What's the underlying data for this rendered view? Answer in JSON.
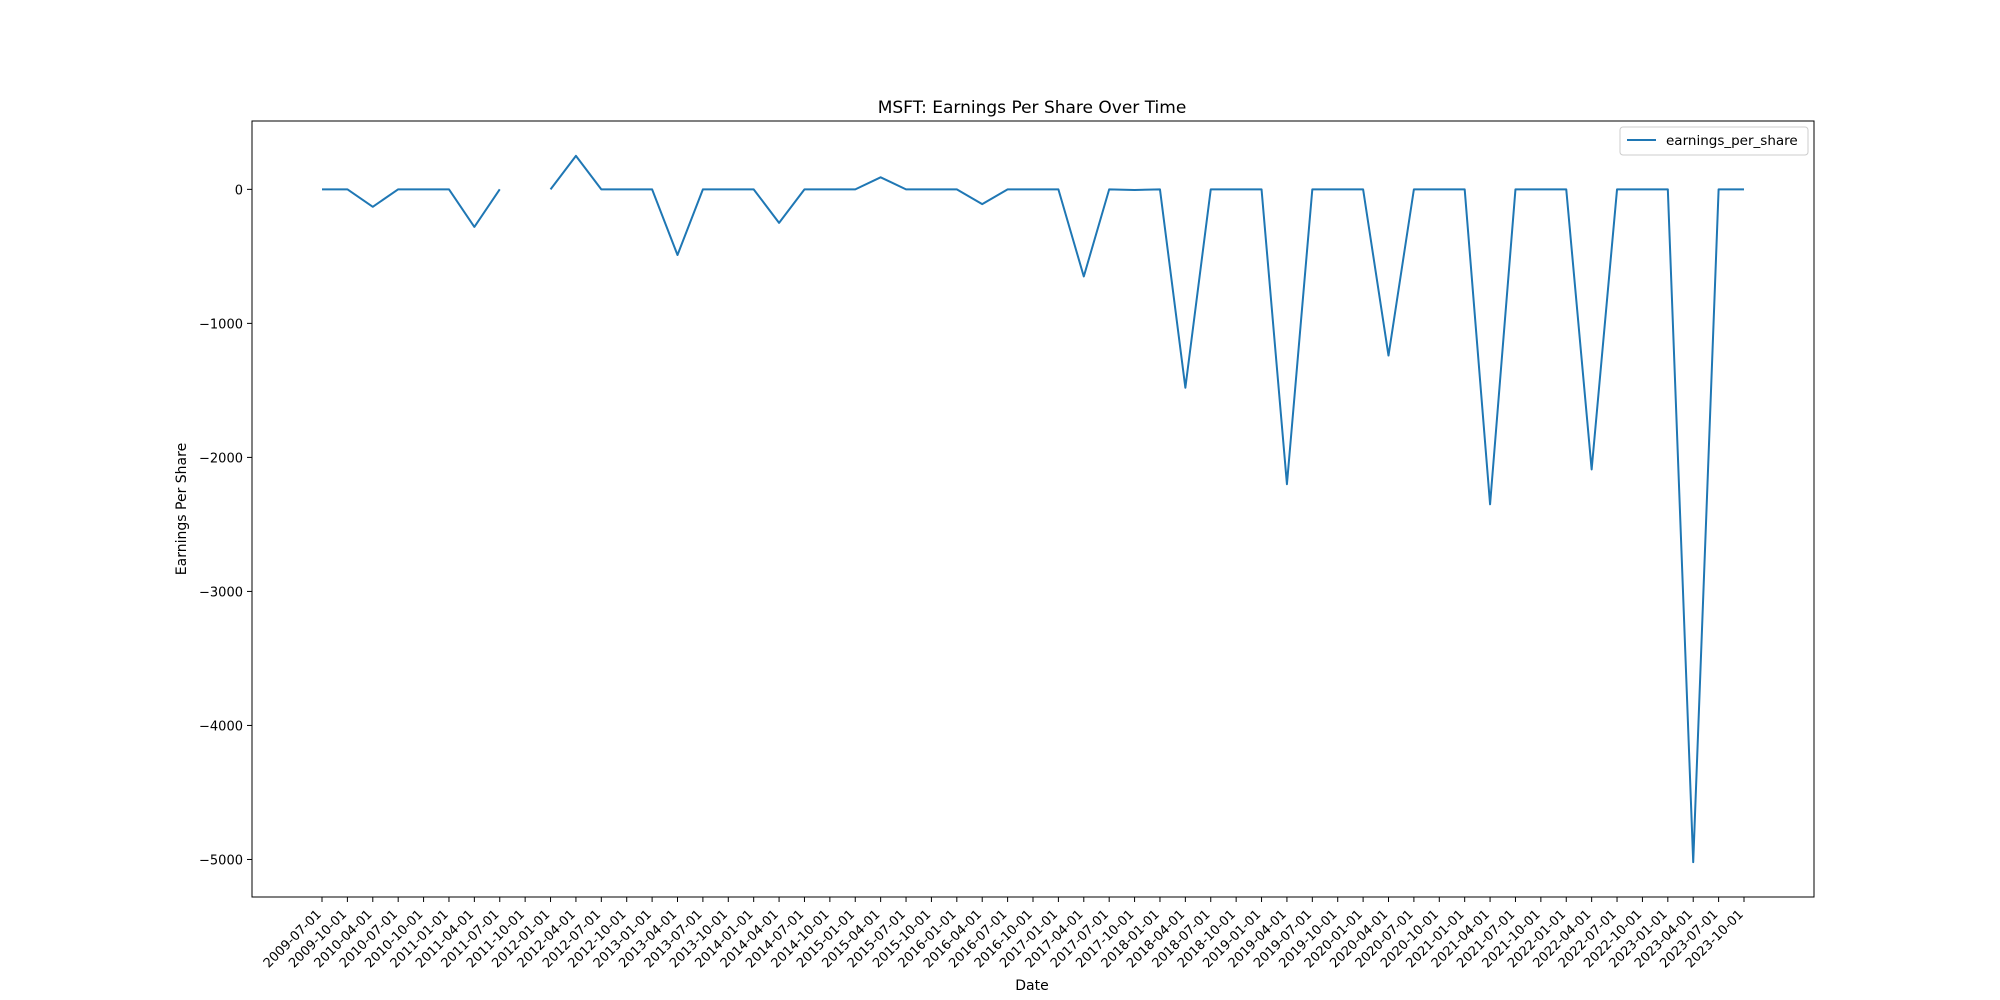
{
  "chart_data": {
    "type": "line",
    "title": "MSFT: Earnings Per Share Over Time",
    "xlabel": "Date",
    "ylabel": "Earnings Per Share",
    "ylim": [
      -5280,
      510
    ],
    "yticks": [
      0,
      -1000,
      -2000,
      -3000,
      -4000,
      -5000
    ],
    "ytick_labels": [
      "0",
      "−1000",
      "−2000",
      "−3000",
      "−4000",
      "−5000"
    ],
    "grid": false,
    "legend_position": "top-right",
    "color": "#1f77b4",
    "categories": [
      "2009-07-01",
      "2009-10-01",
      "2010-04-01",
      "2010-07-01",
      "2010-10-01",
      "2011-01-01",
      "2011-04-01",
      "2011-07-01",
      "2011-10-01",
      "2012-01-01",
      "2012-04-01",
      "2012-07-01",
      "2012-10-01",
      "2013-01-01",
      "2013-04-01",
      "2013-07-01",
      "2013-10-01",
      "2014-01-01",
      "2014-04-01",
      "2014-07-01",
      "2014-10-01",
      "2015-01-01",
      "2015-04-01",
      "2015-07-01",
      "2015-10-01",
      "2016-01-01",
      "2016-04-01",
      "2016-07-01",
      "2016-10-01",
      "2017-01-01",
      "2017-04-01",
      "2017-07-01",
      "2017-10-01",
      "2018-01-01",
      "2018-04-01",
      "2018-07-01",
      "2018-10-01",
      "2019-01-01",
      "2019-04-01",
      "2019-07-01",
      "2019-10-01",
      "2020-01-01",
      "2020-04-01",
      "2020-07-01",
      "2020-10-01",
      "2021-01-01",
      "2021-04-01",
      "2021-07-01",
      "2021-10-01",
      "2022-01-01",
      "2022-04-01",
      "2022-07-01",
      "2022-10-01",
      "2023-01-01",
      "2023-04-01",
      "2023-07-01",
      "2023-10-01"
    ],
    "series": [
      {
        "name": "earnings_per_share",
        "values": [
          0,
          0,
          -130,
          0,
          0,
          0,
          -280,
          0,
          null,
          0,
          250,
          0,
          0,
          0,
          -490,
          0,
          0,
          0,
          -250,
          0,
          0,
          0,
          90,
          0,
          0,
          0,
          -110,
          0,
          0,
          0,
          -650,
          0,
          -5,
          0,
          -1480,
          0,
          0,
          0,
          -2200,
          0,
          0,
          0,
          -1240,
          0,
          0,
          0,
          -2350,
          0,
          0,
          0,
          -2090,
          0,
          0,
          0,
          -5020,
          0,
          0
        ]
      }
    ]
  }
}
